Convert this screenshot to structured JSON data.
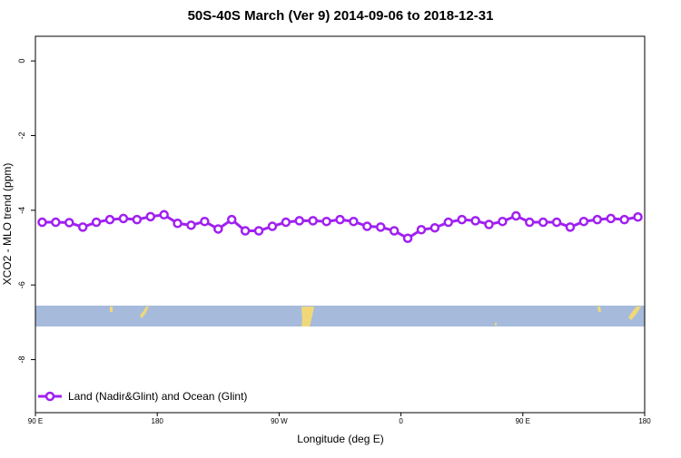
{
  "chart_data": {
    "type": "line",
    "title": "50S-40S March (Ver 9)   2014-09-06 to 2018-12-31",
    "x_label": "Longitude (deg E)",
    "y_label": "XCO2 - MLO trend (ppm)",
    "x": [
      95,
      105,
      115,
      125,
      135,
      145,
      155,
      165,
      175,
      185,
      195,
      205,
      215,
      225,
      235,
      245,
      255,
      265,
      275,
      285,
      295,
      305,
      315,
      325,
      335,
      345,
      355,
      365,
      375,
      385,
      395,
      405,
      415,
      425,
      435,
      445,
      455,
      465,
      475,
      485,
      495,
      505,
      515,
      525,
      535
    ],
    "series": [
      {
        "name": "Land (Nadir&Glint) and Ocean (Glint)",
        "color": "#a020f0",
        "values": [
          -4.32,
          -4.32,
          -4.33,
          -4.45,
          -4.32,
          -4.25,
          -4.22,
          -4.25,
          -4.17,
          -4.12,
          -4.35,
          -4.4,
          -4.3,
          -4.5,
          -4.25,
          -4.55,
          -4.55,
          -4.43,
          -4.32,
          -4.28,
          -4.28,
          -4.3,
          -4.25,
          -4.3,
          -4.43,
          -4.45,
          -4.55,
          -4.75,
          -4.52,
          -4.47,
          -4.32,
          -4.25,
          -4.28,
          -4.38,
          -4.3,
          -4.15,
          -4.32,
          -4.32,
          -4.32,
          -4.45,
          -4.3,
          -4.25,
          -4.22,
          -4.25,
          -4.18
        ]
      }
    ],
    "xlim": [
      90,
      540
    ],
    "xticks": [
      {
        "value": 90,
        "label": "90 E"
      },
      180,
      {
        "value": 270,
        "label": "90 W"
      },
      {
        "value": 360,
        "label": "0"
      },
      {
        "value": 450,
        "label": "90 E"
      },
      {
        "value": 540,
        "label": "180"
      }
    ],
    "ylim": [
      -9.42,
      0.66
    ],
    "yticks": [
      0,
      -2,
      -4,
      -6,
      -8
    ],
    "legend": "bottom-left"
  }
}
